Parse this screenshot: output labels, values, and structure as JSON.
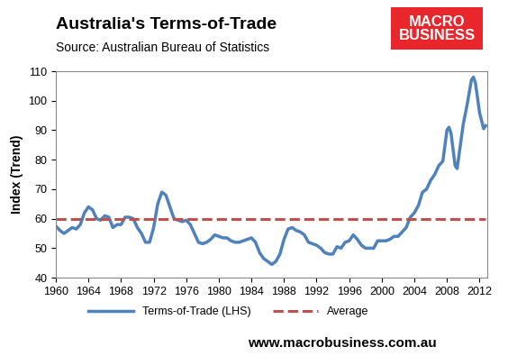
{
  "chart_data": {
    "type": "line",
    "title": "Australia's Terms-of-Trade",
    "subtitle": "Source: Australian Bureau of Statistics",
    "y_label": "Index (Trend)",
    "annotations": [
      "www.macrobusiness.com.au",
      "MACRO\nBUSINESS"
    ],
    "x": [
      1960,
      1960.5,
      1961,
      1961.5,
      1962,
      1962.5,
      1963,
      1963.5,
      1964,
      1964.5,
      1965,
      1965.5,
      1966,
      1966.5,
      1967,
      1967.5,
      1968,
      1968.5,
      1969,
      1969.5,
      1970,
      1970.5,
      1971,
      1971.5,
      1972,
      1972.5,
      1973,
      1973.5,
      1974,
      1974.5,
      1975,
      1975.5,
      1976,
      1976.5,
      1977,
      1977.5,
      1978,
      1978.5,
      1979,
      1979.5,
      1980,
      1980.5,
      1981,
      1981.5,
      1982,
      1982.5,
      1983,
      1983.5,
      1984,
      1984.5,
      1985,
      1985.5,
      1986,
      1986.5,
      1987,
      1987.5,
      1988,
      1988.5,
      1989,
      1989.5,
      1990,
      1990.5,
      1991,
      1991.5,
      1992,
      1992.5,
      1993,
      1993.5,
      1994,
      1994.5,
      1995,
      1995.5,
      1996,
      1996.5,
      1997,
      1997.5,
      1998,
      1998.5,
      1999,
      1999.5,
      2000,
      2000.5,
      2001,
      2001.5,
      2002,
      2002.5,
      2003,
      2003.5,
      2004,
      2004.5,
      2005,
      2005.5,
      2006,
      2006.5,
      2007,
      2007.5,
      2008,
      2008.25,
      2008.5,
      2009,
      2009.25,
      2009.5,
      2010,
      2010.5,
      2011,
      2011.25,
      2011.5,
      2012,
      2012.5,
      2012.75
    ],
    "series": [
      {
        "name": "Terms-of-Trade (LHS)",
        "color": "#4f81bd",
        "line_style": "solid",
        "values": [
          57.5,
          56,
          55,
          56,
          57,
          56.5,
          58,
          62,
          64,
          63,
          60,
          59.5,
          61,
          60.5,
          57,
          58,
          58,
          60.5,
          60.5,
          60,
          57,
          55,
          52,
          52,
          57,
          65,
          69,
          68,
          64,
          60,
          59.5,
          59,
          59.5,
          58,
          55,
          52,
          51.5,
          52,
          53,
          54.5,
          54,
          53.5,
          53.5,
          52.5,
          52,
          52,
          52.5,
          53,
          53.5,
          52,
          48.5,
          46.5,
          45.5,
          44.5,
          45.5,
          48,
          53,
          56.5,
          57,
          56,
          55.5,
          54.5,
          52,
          51.5,
          51,
          50,
          48.5,
          48,
          48,
          50.5,
          50,
          52,
          52.5,
          54.5,
          53,
          51,
          50,
          50,
          50,
          52.5,
          52.5,
          52.5,
          53,
          54,
          54,
          55.5,
          57,
          60.5,
          62,
          64.5,
          69,
          70,
          73,
          75,
          78,
          79.5,
          90,
          91,
          89,
          78,
          77,
          82,
          92,
          99,
          107,
          108,
          106,
          96,
          90.5,
          91.5
        ]
      },
      {
        "name": "Average",
        "color": "#c0504d",
        "line_style": "dashed",
        "values": [
          60,
          60,
          60,
          60,
          60,
          60,
          60,
          60,
          60,
          60,
          60,
          60,
          60,
          60,
          60,
          60,
          60,
          60,
          60,
          60,
          60,
          60,
          60,
          60,
          60,
          60,
          60,
          60,
          60,
          60,
          60,
          60,
          60,
          60,
          60,
          60,
          60,
          60,
          60,
          60,
          60,
          60,
          60,
          60,
          60,
          60,
          60,
          60,
          60,
          60,
          60,
          60,
          60,
          60,
          60,
          60,
          60,
          60,
          60,
          60,
          60,
          60,
          60,
          60,
          60,
          60,
          60,
          60,
          60,
          60,
          60,
          60,
          60,
          60,
          60,
          60,
          60,
          60,
          60,
          60,
          60,
          60,
          60,
          60,
          60,
          60,
          60,
          60,
          60,
          60,
          60,
          60,
          60,
          60,
          60,
          60,
          60,
          60,
          60,
          60,
          60,
          60,
          60,
          60,
          60,
          60,
          60,
          60,
          60,
          60
        ]
      }
    ],
    "xlim": [
      1960,
      2013
    ],
    "xticks": [
      1960,
      1964,
      1968,
      1972,
      1976,
      1980,
      1984,
      1988,
      1992,
      1996,
      2000,
      2004,
      2008,
      2012
    ],
    "ylim": [
      40,
      110
    ],
    "yticks": [
      40,
      50,
      60,
      70,
      80,
      90,
      100,
      110
    ],
    "grid": false,
    "legend": "bottom"
  }
}
